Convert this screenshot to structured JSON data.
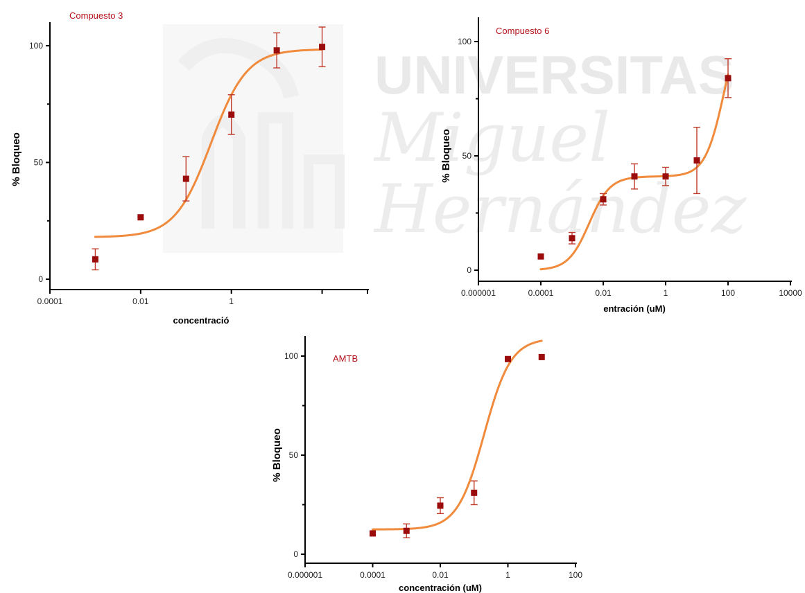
{
  "watermark": {
    "line1": "UNIVERSITAS",
    "line2": "Miguel",
    "line3": "Hernández"
  },
  "colors": {
    "marker": "#9b0d0d",
    "fit": "#f08a3c",
    "errbar": "#c0392b",
    "title": "#b3141b",
    "watermark": "#e9e9e9"
  },
  "chart_data": [
    {
      "type": "scatter",
      "title": "Compuesto 3",
      "xlabel": "concentració",
      "ylabel": "% Bloqueo",
      "xscale": "log",
      "xlim": [
        0.0001,
        1000
      ],
      "ylim": [
        0,
        100
      ],
      "xticks": [
        0.0001,
        0.01,
        1,
        100,
        10000
      ],
      "xtick_labels": [
        "0.0001",
        "0.01",
        "1",
        "",
        ""
      ],
      "yticks": [
        0,
        50,
        100
      ],
      "ytick_labels": [
        "0",
        "50",
        "100"
      ],
      "points": [
        {
          "x": 0.001,
          "y": 8.5,
          "err": 4.5
        },
        {
          "x": 0.01,
          "y": 26.5,
          "err": 0
        },
        {
          "x": 0.1,
          "y": 43.0,
          "err": 9.5
        },
        {
          "x": 1,
          "y": 70.5,
          "err": 8.5
        },
        {
          "x": 10,
          "y": 98.0,
          "err": 7.5
        },
        {
          "x": 100,
          "y": 99.5,
          "err": 8.5
        }
      ],
      "fit": {
        "bottom": 18,
        "top": 98.5,
        "logEC50": -0.45,
        "hill": 1.1,
        "xrange": [
          0.001,
          100
        ]
      }
    },
    {
      "type": "scatter",
      "title": "Compuesto 6",
      "xlabel": "entración (uM)",
      "ylabel": "% Bloqueo",
      "xscale": "log",
      "xlim": [
        1e-06,
        10000
      ],
      "ylim": [
        0,
        100
      ],
      "xticks": [
        1e-06,
        0.0001,
        0.01,
        1,
        100,
        10000
      ],
      "xtick_labels": [
        "0.000001",
        "0.0001",
        "0.01",
        "1",
        "100",
        "10000"
      ],
      "yticks": [
        0,
        50,
        100
      ],
      "ytick_labels": [
        "0",
        "50",
        "100"
      ],
      "points": [
        {
          "x": 0.0001,
          "y": 6,
          "err": 0
        },
        {
          "x": 0.001,
          "y": 14,
          "err": 2.5
        },
        {
          "x": 0.01,
          "y": 31,
          "err": 2.5
        },
        {
          "x": 0.1,
          "y": 41,
          "err": 5.5
        },
        {
          "x": 1,
          "y": 41,
          "err": 4.0
        },
        {
          "x": 10,
          "y": 48,
          "err": 14.5
        },
        {
          "x": 100,
          "y": 84,
          "err": 8.5
        }
      ],
      "fit": {
        "biphasic": true,
        "bottom": 0,
        "plateau": 41,
        "top": 118,
        "logEC50_1": -2.45,
        "hill1": 1.3,
        "logEC50_2": 1.9,
        "hill2": 1.4,
        "xrange": [
          0.0001,
          100
        ]
      }
    },
    {
      "type": "scatter",
      "title": "AMTB",
      "xlabel": "concentración (uM)",
      "ylabel": "% Bloqueo",
      "xscale": "log",
      "xlim": [
        1e-06,
        100
      ],
      "ylim": [
        0,
        100
      ],
      "xticks": [
        1e-06,
        0.0001,
        0.01,
        1,
        100
      ],
      "xtick_labels": [
        "0.000001",
        "0.0001",
        "0.01",
        "1",
        "100"
      ],
      "yticks": [
        0,
        50,
        100
      ],
      "ytick_labels": [
        "0",
        "50",
        "100"
      ],
      "points": [
        {
          "x": 0.0001,
          "y": 10.5,
          "err": 0
        },
        {
          "x": 0.001,
          "y": 11.8,
          "err": 3.5
        },
        {
          "x": 0.01,
          "y": 24.5,
          "err": 4.0
        },
        {
          "x": 0.1,
          "y": 31,
          "err": 6.0
        },
        {
          "x": 1,
          "y": 98.5,
          "err": 0
        },
        {
          "x": 10,
          "y": 99.5,
          "err": 0
        }
      ],
      "fit": {
        "bottom": 12.5,
        "top": 109,
        "logEC50": -0.7,
        "hill": 1.1,
        "xrange": [
          0.0001,
          10
        ]
      }
    }
  ]
}
